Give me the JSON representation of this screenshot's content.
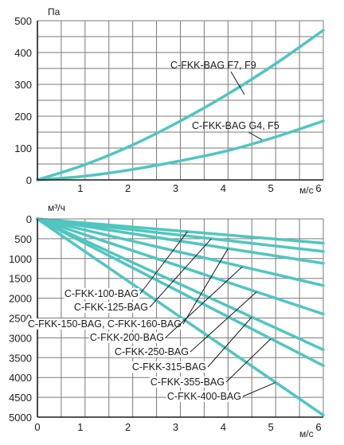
{
  "theme": {
    "curve_color": "#4fc6c0",
    "grid_color": "#7a7a7a",
    "axis_color": "#1a1a1a",
    "text_color": "#1a1a1a"
  },
  "chart_data": [
    {
      "type": "line",
      "title": "",
      "ylabel": "Па",
      "xlabel": "м/с",
      "xlim": [
        0,
        6
      ],
      "ylim": [
        0,
        500
      ],
      "x_ticks": [
        1,
        2,
        3,
        4,
        5,
        6
      ],
      "y_ticks": [
        0,
        100,
        200,
        300,
        400,
        500
      ],
      "grid": true,
      "x_grid_step": 0.5,
      "y_grid_step": 50,
      "series": [
        {
          "name": "C-FKK-BAG  F7, F9",
          "x": [
            0,
            1,
            2,
            3,
            4,
            5,
            6
          ],
          "y": [
            0,
            48,
            110,
            185,
            270,
            365,
            470
          ]
        },
        {
          "name": "C-FKK-BAG G4, F5",
          "x": [
            0,
            1,
            2,
            3,
            4,
            5,
            6
          ],
          "y": [
            0,
            12,
            33,
            60,
            92,
            135,
            185
          ]
        }
      ]
    },
    {
      "type": "line",
      "title": "",
      "ylabel": "м³/ч",
      "xlabel": "м/с",
      "xlim": [
        0,
        6
      ],
      "ylim": [
        0,
        5000
      ],
      "y_inverted": true,
      "x_ticks": [
        0,
        1,
        2,
        3,
        4,
        5,
        6
      ],
      "y_ticks": [
        0,
        500,
        1000,
        1500,
        2000,
        2500,
        3000,
        3500,
        4000,
        4500,
        5000
      ],
      "grid": true,
      "x_grid_step": 0.5,
      "y_grid_step": 500,
      "series": [
        {
          "name": "C-FKK-100-BAG",
          "x": [
            0,
            6
          ],
          "y": [
            0,
            610
          ]
        },
        {
          "name": "C-FKK-125-BAG",
          "x": [
            0,
            6
          ],
          "y": [
            0,
            820
          ]
        },
        {
          "name": "C-FKK-150-BAG, C-FKK-160-BAG",
          "x": [
            0,
            6
          ],
          "y": [
            0,
            1120
          ]
        },
        {
          "name": "C-FKK-200-BAG",
          "x": [
            0,
            6
          ],
          "y": [
            0,
            1680
          ]
        },
        {
          "name": "C-FKK-250-BAG",
          "x": [
            0,
            6
          ],
          "y": [
            0,
            2400
          ]
        },
        {
          "name": "C-FKK-315-BAG",
          "x": [
            0,
            6
          ],
          "y": [
            0,
            3300
          ]
        },
        {
          "name": "C-FKK-355-BAG",
          "x": [
            0,
            6
          ],
          "y": [
            0,
            3700
          ]
        },
        {
          "name": "C-FKK-400-BAG",
          "x": [
            0,
            6
          ],
          "y": [
            0,
            4950
          ]
        }
      ]
    }
  ]
}
